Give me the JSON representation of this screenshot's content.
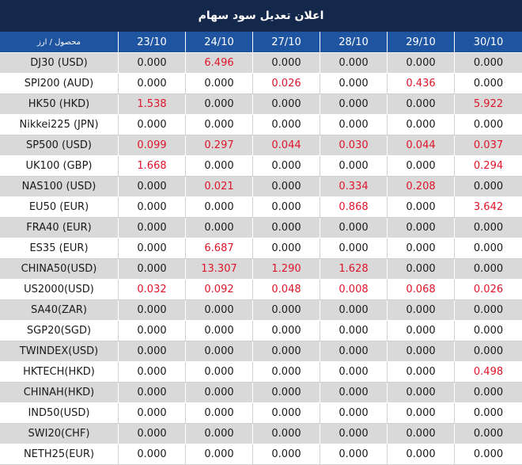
{
  "title": "اعلان تعديل سود سهام",
  "header": {
    "first_col": "محصول / ارز",
    "dates": [
      "23/10",
      "24/10",
      "27/10",
      "28/10",
      "29/10",
      "30/10"
    ]
  },
  "rows": [
    {
      "name": "DJ30 (USD)",
      "values": [
        "0.000",
        "6.496",
        "0.000",
        "0.000",
        "0.000",
        "0.000"
      ]
    },
    {
      "name": "SPI200 (AUD)",
      "values": [
        "0.000",
        "0.000",
        "0.026",
        "0.000",
        "0.436",
        "0.000"
      ]
    },
    {
      "name": "HK50 (HKD)",
      "values": [
        "1.538",
        "0.000",
        "0.000",
        "0.000",
        "0.000",
        "5.922"
      ]
    },
    {
      "name": "Nikkei225 (JPN)",
      "values": [
        "0.000",
        "0.000",
        "0.000",
        "0.000",
        "0.000",
        "0.000"
      ]
    },
    {
      "name": "SP500 (USD)",
      "values": [
        "0.099",
        "0.297",
        "0.044",
        "0.030",
        "0.044",
        "0.037"
      ]
    },
    {
      "name": "UK100 (GBP)",
      "values": [
        "1.668",
        "0.000",
        "0.000",
        "0.000",
        "0.000",
        "0.294"
      ]
    },
    {
      "name": "NAS100 (USD)",
      "values": [
        "0.000",
        "0.021",
        "0.000",
        "0.334",
        "0.208",
        "0.000"
      ]
    },
    {
      "name": "EU50 (EUR)",
      "values": [
        "0.000",
        "0.000",
        "0.000",
        "0.868",
        "0.000",
        "3.642"
      ]
    },
    {
      "name": "FRA40 (EUR)",
      "values": [
        "0.000",
        "0.000",
        "0.000",
        "0.000",
        "0.000",
        "0.000"
      ]
    },
    {
      "name": "ES35 (EUR)",
      "values": [
        "0.000",
        "6.687",
        "0.000",
        "0.000",
        "0.000",
        "0.000"
      ]
    },
    {
      "name": "CHINA50(USD)",
      "values": [
        "0.000",
        "13.307",
        "1.290",
        "1.628",
        "0.000",
        "0.000"
      ]
    },
    {
      "name": "US2000(USD)",
      "values": [
        "0.032",
        "0.092",
        "0.048",
        "0.008",
        "0.068",
        "0.026"
      ]
    },
    {
      "name": "SA40(ZAR)",
      "values": [
        "0.000",
        "0.000",
        "0.000",
        "0.000",
        "0.000",
        "0.000"
      ]
    },
    {
      "name": "SGP20(SGD)",
      "values": [
        "0.000",
        "0.000",
        "0.000",
        "0.000",
        "0.000",
        "0.000"
      ]
    },
    {
      "name": "TWINDEX(USD)",
      "values": [
        "0.000",
        "0.000",
        "0.000",
        "0.000",
        "0.000",
        "0.000"
      ]
    },
    {
      "name": "HKTECH(HKD)",
      "values": [
        "0.000",
        "0.000",
        "0.000",
        "0.000",
        "0.000",
        "0.498"
      ]
    },
    {
      "name": "CHINAH(HKD)",
      "values": [
        "0.000",
        "0.000",
        "0.000",
        "0.000",
        "0.000",
        "0.000"
      ]
    },
    {
      "name": "IND50(USD)",
      "values": [
        "0.000",
        "0.000",
        "0.000",
        "0.000",
        "0.000",
        "0.000"
      ]
    },
    {
      "name": "SWI20(CHF)",
      "values": [
        "0.000",
        "0.000",
        "0.000",
        "0.000",
        "0.000",
        "0.000"
      ]
    },
    {
      "name": "NETH25(EUR)",
      "values": [
        "0.000",
        "0.000",
        "0.000",
        "0.000",
        "0.000",
        "0.000"
      ]
    }
  ],
  "colors": {
    "title_bg": "#14284b",
    "header_bg": "#1f55a0",
    "odd_row_bg": "#d9d9d9",
    "even_row_bg": "#ffffff",
    "nonzero_value": "#e0142a",
    "zero_value": "#1a1a1a"
  }
}
